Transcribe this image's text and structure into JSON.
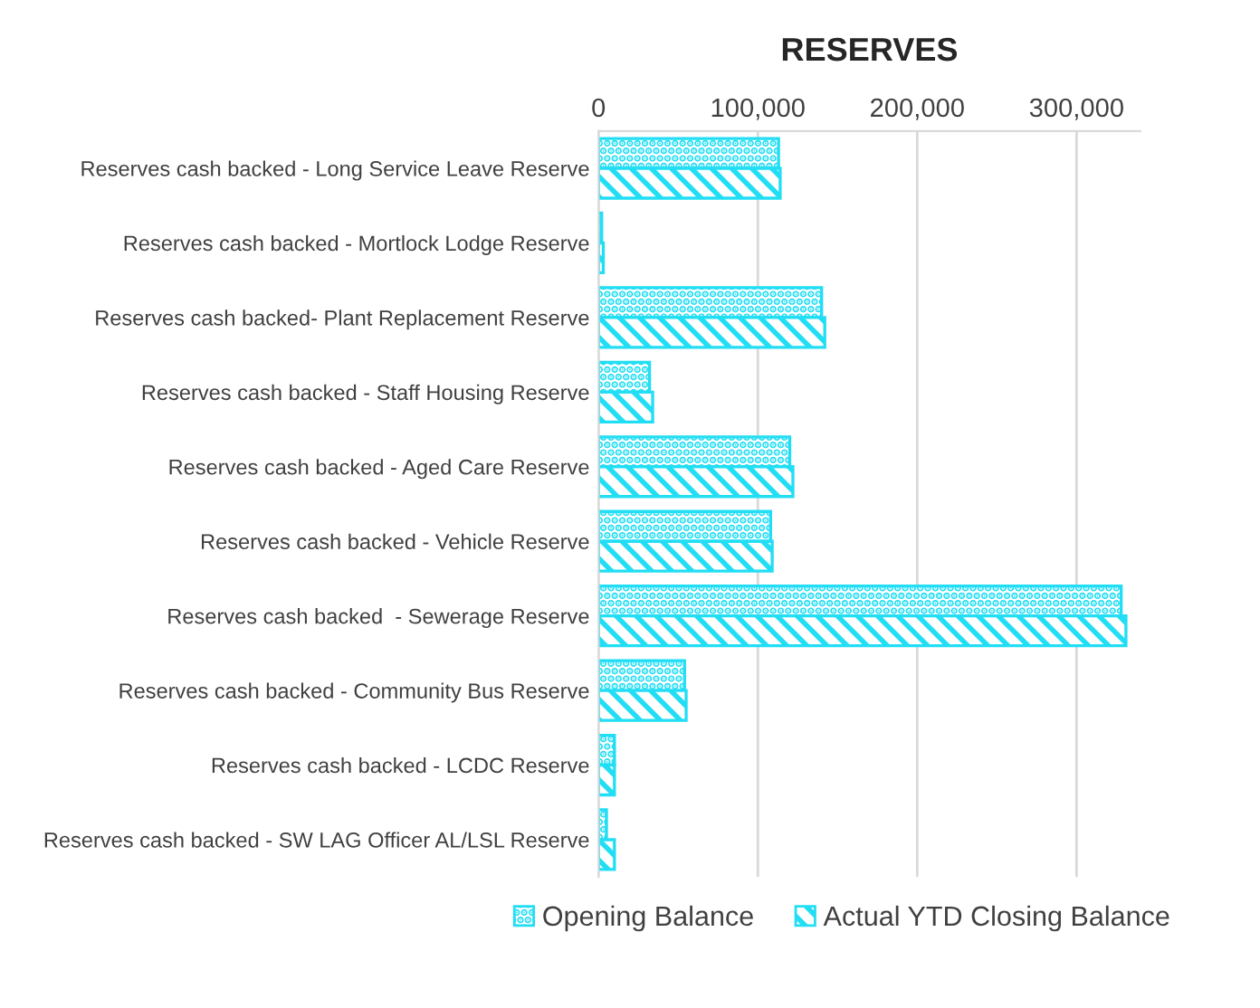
{
  "chart_data": {
    "type": "bar",
    "orientation": "horizontal",
    "title": "RESERVES",
    "categories": [
      "Reserves cash backed - Long Service Leave Reserve",
      "Reserves cash backed - Mortlock Lodge Reserve",
      "Reserves cash backed- Plant Replacement Reserve",
      "Reserves cash backed - Staff Housing Reserve",
      "Reserves cash backed - Aged Care Reserve",
      "Reserves cash backed - Vehicle Reserve",
      "Reserves cash backed  - Sewerage Reserve",
      "Reserves cash backed - Community Bus Reserve",
      "Reserves cash backed - LCDC Reserve",
      "Reserves cash backed - SW LAG Officer AL/LSL Reserve"
    ],
    "series": [
      {
        "name": "Opening Balance",
        "color": "#22def5",
        "values": [
          113000,
          2000,
          140000,
          32000,
          120000,
          108000,
          328000,
          54000,
          10000,
          5000
        ]
      },
      {
        "name": "Actual YTD Closing Balance",
        "color": "#22def5",
        "values": [
          114000,
          3000,
          142000,
          34000,
          122000,
          109000,
          331000,
          55000,
          10000,
          10000
        ]
      }
    ],
    "xlim": [
      0,
      340000
    ],
    "xticks": [
      {
        "value": 0,
        "label": "0"
      },
      {
        "value": 100000,
        "label": "100,000"
      },
      {
        "value": 200000,
        "label": "200,000"
      },
      {
        "value": 300000,
        "label": "300,000"
      }
    ],
    "grid": "x",
    "legend": "bottom"
  }
}
